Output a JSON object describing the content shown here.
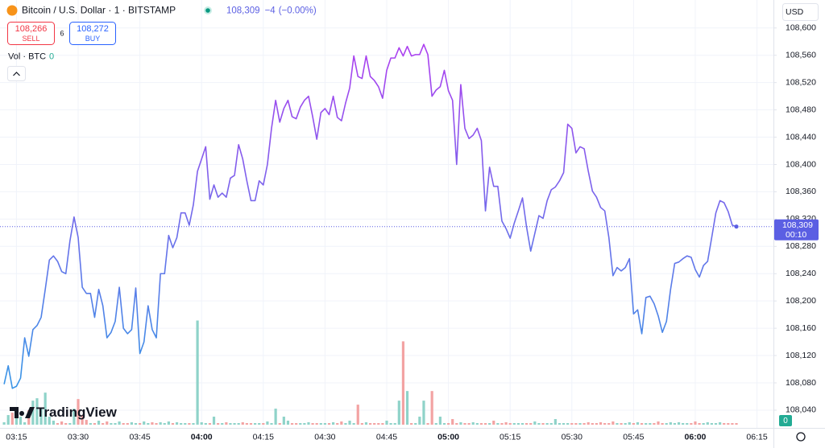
{
  "header": {
    "price_change": "−4",
    "price_change_percent": "(−0.00%)",
    "sell_price": "108,266",
    "sell": "SELL",
    "spread": "6",
    "buy_price": "108,272",
    "buy": "BUY",
    "volume_value": "0",
    "currency": "USD",
    "countdown": "00:10",
    "volume_badge": "0",
    "brand": "TradingView"
  },
  "chart_data": {
    "type": "line",
    "title": "Bitcoin / U.S. Dollar · 1 · BITSTAMP",
    "x": [
      "03:12",
      "03:13",
      "03:14",
      "03:15",
      "03:16",
      "03:17",
      "03:18",
      "03:19",
      "03:20",
      "03:21",
      "03:22",
      "03:23",
      "03:24",
      "03:25",
      "03:26",
      "03:27",
      "03:28",
      "03:29",
      "03:30",
      "03:31",
      "03:32",
      "03:33",
      "03:34",
      "03:35",
      "03:36",
      "03:37",
      "03:38",
      "03:39",
      "03:40",
      "03:41",
      "03:42",
      "03:43",
      "03:44",
      "03:45",
      "03:46",
      "03:47",
      "03:48",
      "03:49",
      "03:50",
      "03:51",
      "03:52",
      "03:53",
      "03:54",
      "03:55",
      "03:56",
      "03:57",
      "03:58",
      "03:59",
      "04:00",
      "04:01",
      "04:02",
      "04:03",
      "04:04",
      "04:05",
      "04:06",
      "04:07",
      "04:08",
      "04:09",
      "04:10",
      "04:11",
      "04:12",
      "04:13",
      "04:14",
      "04:15",
      "04:16",
      "04:17",
      "04:18",
      "04:19",
      "04:20",
      "04:21",
      "04:22",
      "04:23",
      "04:24",
      "04:25",
      "04:26",
      "04:27",
      "04:28",
      "04:29",
      "04:30",
      "04:31",
      "04:32",
      "04:33",
      "04:34",
      "04:35",
      "04:36",
      "04:37",
      "04:38",
      "04:39",
      "04:40",
      "04:41",
      "04:42",
      "04:43",
      "04:44",
      "04:45",
      "04:46",
      "04:47",
      "04:48",
      "04:49",
      "04:50",
      "04:51",
      "04:52",
      "04:53",
      "04:54",
      "04:55",
      "04:56",
      "04:57",
      "04:58",
      "04:59",
      "05:00",
      "05:01",
      "05:02",
      "05:03",
      "05:04",
      "05:05",
      "05:06",
      "05:07",
      "05:08",
      "05:09",
      "05:10",
      "05:11",
      "05:12",
      "05:13",
      "05:14",
      "05:15",
      "05:16",
      "05:17",
      "05:18",
      "05:19",
      "05:20",
      "05:21",
      "05:22",
      "05:23",
      "05:24",
      "05:25",
      "05:26",
      "05:27",
      "05:28",
      "05:29",
      "05:30",
      "05:31",
      "05:32",
      "05:33",
      "05:34",
      "05:35",
      "05:36",
      "05:37",
      "05:38",
      "05:39",
      "05:40",
      "05:41",
      "05:42",
      "05:43",
      "05:44",
      "05:45",
      "05:46",
      "05:47",
      "05:48",
      "05:49",
      "05:50",
      "05:51",
      "05:52",
      "05:53",
      "05:54",
      "05:55",
      "05:56",
      "05:57",
      "05:58",
      "05:59",
      "06:00",
      "06:01",
      "06:02",
      "06:03",
      "06:04",
      "06:05",
      "06:06",
      "06:07",
      "06:08",
      "06:09",
      "06:10"
    ],
    "series": [
      {
        "color_top": "#b13cf0",
        "color_bottom": "#3a93e6",
        "values": [
          108078,
          108105,
          108072,
          108075,
          108087,
          108146,
          108119,
          108158,
          108164,
          108176,
          108217,
          108260,
          108266,
          108258,
          108243,
          108240,
          108288,
          108323,
          108293,
          108220,
          108211,
          108211,
          108176,
          108217,
          108193,
          108146,
          108154,
          108170,
          108220,
          108160,
          108152,
          108158,
          108219,
          108123,
          108140,
          108193,
          108158,
          108146,
          108240,
          108240,
          108296,
          108278,
          108293,
          108329,
          108329,
          108311,
          108341,
          108390,
          108408,
          108426,
          108349,
          108370,
          108352,
          108358,
          108352,
          108380,
          108384,
          108429,
          108408,
          108376,
          108347,
          108347,
          108376,
          108370,
          108400,
          108453,
          108494,
          108462,
          108482,
          108494,
          108470,
          108467,
          108484,
          108494,
          108500,
          108470,
          108437,
          108476,
          108482,
          108473,
          108500,
          108469,
          108464,
          108490,
          108512,
          108559,
          108529,
          108526,
          108559,
          108529,
          108523,
          108514,
          108497,
          108538,
          108556,
          108556,
          108571,
          108559,
          108573,
          108559,
          108561,
          108561,
          108576,
          108561,
          108500,
          108509,
          108514,
          108538,
          108508,
          108494,
          108400,
          108517,
          108453,
          108438,
          108443,
          108453,
          108435,
          108332,
          108396,
          108368,
          108368,
          108317,
          108306,
          108292,
          108314,
          108332,
          108351,
          108308,
          108273,
          108299,
          108325,
          108321,
          108347,
          108363,
          108367,
          108376,
          108388,
          108459,
          108453,
          108417,
          108426,
          108423,
          108390,
          108361,
          108352,
          108337,
          108332,
          108293,
          108237,
          108249,
          108244,
          108249,
          108262,
          108181,
          108187,
          108152,
          108205,
          108207,
          108196,
          108178,
          108154,
          108170,
          108217,
          108255,
          108257,
          108262,
          108266,
          108264,
          108246,
          108235,
          108252,
          108258,
          108293,
          108329,
          108347,
          108344,
          108331,
          108311,
          108309
        ]
      },
      {
        "name": "Vol · BTC",
        "type": "bar",
        "axis": "volume",
        "up_color": "#8fd3c9",
        "down_color": "#f3a3a3",
        "values": [
          0.03,
          0.12,
          0.15,
          0.18,
          0.1,
          0.03,
          0.18,
          0.3,
          0.33,
          0.2,
          0.4,
          0.1,
          0.05,
          0.02,
          0.04,
          0.02,
          0.02,
          0.2,
          0.32,
          0.12,
          0.06,
          0.02,
          0.02,
          0.05,
          0.02,
          0.04,
          0.02,
          0.02,
          0.04,
          0.02,
          0.02,
          0.03,
          0.02,
          0.02,
          0.04,
          0.02,
          0.03,
          0.02,
          0.03,
          0.02,
          0.04,
          0.02,
          0.03,
          0.02,
          0.02,
          0.02,
          0.02,
          1.3,
          0.03,
          0.02,
          0.02,
          0.1,
          0.02,
          0.02,
          0.03,
          0.02,
          0.02,
          0.02,
          0.03,
          0.02,
          0.02,
          0.02,
          0.02,
          0.02,
          0.04,
          0.02,
          0.2,
          0.02,
          0.1,
          0.05,
          0.02,
          0.02,
          0.02,
          0.02,
          0.03,
          0.02,
          0.02,
          0.02,
          0.02,
          0.02,
          0.03,
          0.02,
          0.04,
          0.02,
          0.05,
          0.02,
          0.25,
          0.02,
          0.03,
          0.02,
          0.02,
          0.02,
          0.02,
          0.05,
          0.02,
          0.02,
          0.3,
          1.04,
          0.42,
          0.02,
          0.02,
          0.1,
          0.3,
          0.02,
          0.42,
          0.02,
          0.1,
          0.02,
          0.02,
          0.07,
          0.02,
          0.03,
          0.02,
          0.02,
          0.03,
          0.02,
          0.02,
          0.02,
          0.02,
          0.05,
          0.02,
          0.02,
          0.03,
          0.02,
          0.02,
          0.02,
          0.02,
          0.02,
          0.02,
          0.04,
          0.02,
          0.02,
          0.02,
          0.02,
          0.07,
          0.02,
          0.02,
          0.02,
          0.02,
          0.02,
          0.02,
          0.02,
          0.03,
          0.02,
          0.02,
          0.03,
          0.02,
          0.02,
          0.04,
          0.02,
          0.02,
          0.02,
          0.03,
          0.02,
          0.03,
          0.02,
          0.02,
          0.02,
          0.02,
          0.04,
          0.02,
          0.02,
          0.03,
          0.02,
          0.03,
          0.02,
          0.02,
          0.02,
          0.04,
          0.02,
          0.02,
          0.03,
          0.02,
          0.02,
          0.03,
          0.02,
          0.02,
          0.02,
          0.02
        ]
      }
    ],
    "last_price": {
      "value": 108309,
      "label": "108,309"
    },
    "last_price_color": "#5b5fe3",
    "ylim": [
      108014,
      108641
    ],
    "yticks": [
      {
        "value": 108040,
        "label": "108,040"
      },
      {
        "value": 108080,
        "label": "108,080"
      },
      {
        "value": 108120,
        "label": "108,120"
      },
      {
        "value": 108160,
        "label": "108,160"
      },
      {
        "value": 108200,
        "label": "108,200"
      },
      {
        "value": 108240,
        "label": "108,240"
      },
      {
        "value": 108280,
        "label": "108,280"
      },
      {
        "value": 108320,
        "label": "108,320"
      },
      {
        "value": 108360,
        "label": "108,360"
      },
      {
        "value": 108400,
        "label": "108,400"
      },
      {
        "value": 108440,
        "label": "108,440"
      },
      {
        "value": 108480,
        "label": "108,480"
      },
      {
        "value": 108520,
        "label": "108,520"
      },
      {
        "value": 108560,
        "label": "108,560"
      },
      {
        "value": 108600,
        "label": "108,600"
      }
    ],
    "vol_ylim": [
      0,
      5.3
    ],
    "xlim": [
      "03:11",
      "06:19"
    ],
    "xticks": [
      "03:15",
      "03:30",
      "03:45",
      "04:00",
      "04:15",
      "04:30",
      "04:45",
      "05:00",
      "05:15",
      "05:30",
      "05:45",
      "06:00",
      "06:15"
    ],
    "grid": true
  }
}
